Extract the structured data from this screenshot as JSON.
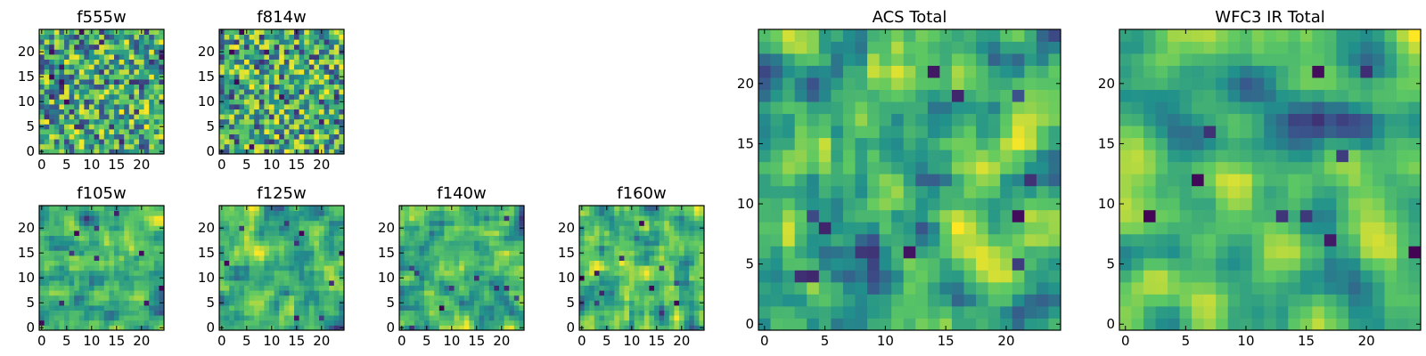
{
  "figure": {
    "colormap": "viridis",
    "colorscale": [
      "#440154",
      "#3b528b",
      "#21918c",
      "#5ec962",
      "#fde725"
    ]
  },
  "chart_data": [
    {
      "type": "heatmap",
      "title": "f555w",
      "grid": [
        25,
        25
      ],
      "xlim": [
        -0.5,
        24.5
      ],
      "ylim": [
        -0.5,
        24.5
      ],
      "xticks": [
        0,
        5,
        10,
        15,
        20
      ],
      "yticks": [
        0,
        5,
        10,
        15,
        20
      ],
      "seed": 11,
      "texture": "noisy"
    },
    {
      "type": "heatmap",
      "title": "f814w",
      "grid": [
        25,
        25
      ],
      "xlim": [
        -0.5,
        24.5
      ],
      "ylim": [
        -0.5,
        24.5
      ],
      "xticks": [
        0,
        5,
        10,
        15,
        20
      ],
      "yticks": [
        0,
        5,
        10,
        15,
        20
      ],
      "seed": 23,
      "texture": "noisy"
    },
    {
      "type": "heatmap",
      "title": "f105w",
      "grid": [
        25,
        25
      ],
      "xlim": [
        -0.5,
        24.5
      ],
      "ylim": [
        -0.5,
        24.5
      ],
      "xticks": [
        0,
        5,
        10,
        15,
        20
      ],
      "yticks": [
        0,
        5,
        10,
        15,
        20
      ],
      "seed": 37,
      "texture": "smooth"
    },
    {
      "type": "heatmap",
      "title": "f125w",
      "grid": [
        25,
        25
      ],
      "xlim": [
        -0.5,
        24.5
      ],
      "ylim": [
        -0.5,
        24.5
      ],
      "xticks": [
        0,
        5,
        10,
        15,
        20
      ],
      "yticks": [
        0,
        5,
        10,
        15,
        20
      ],
      "seed": 41,
      "texture": "smooth"
    },
    {
      "type": "heatmap",
      "title": "f140w",
      "grid": [
        25,
        25
      ],
      "xlim": [
        -0.5,
        24.5
      ],
      "ylim": [
        -0.5,
        24.5
      ],
      "xticks": [
        0,
        5,
        10,
        15,
        20
      ],
      "yticks": [
        0,
        5,
        10,
        15,
        20
      ],
      "seed": 53,
      "texture": "smooth"
    },
    {
      "type": "heatmap",
      "title": "f160w",
      "grid": [
        25,
        25
      ],
      "xlim": [
        -0.5,
        24.5
      ],
      "ylim": [
        -0.5,
        24.5
      ],
      "xticks": [
        0,
        5,
        10,
        15,
        20
      ],
      "yticks": [
        0,
        5,
        10,
        15,
        20
      ],
      "seed": 67,
      "texture": "smooth"
    },
    {
      "type": "heatmap",
      "title": "ACS Total",
      "grid": [
        25,
        25
      ],
      "xlim": [
        -0.5,
        24.5
      ],
      "ylim": [
        -0.5,
        24.5
      ],
      "xticks": [
        0,
        5,
        10,
        15,
        20
      ],
      "yticks": [
        0,
        5,
        10,
        15,
        20
      ],
      "seed": 79,
      "texture": "blocky"
    },
    {
      "type": "heatmap",
      "title": "WFC3 IR Total",
      "grid": [
        25,
        25
      ],
      "xlim": [
        -0.5,
        24.5
      ],
      "ylim": [
        -0.5,
        24.5
      ],
      "xticks": [
        0,
        5,
        10,
        15,
        20
      ],
      "yticks": [
        0,
        5,
        10,
        15,
        20
      ],
      "seed": 97,
      "texture": "blended"
    }
  ]
}
